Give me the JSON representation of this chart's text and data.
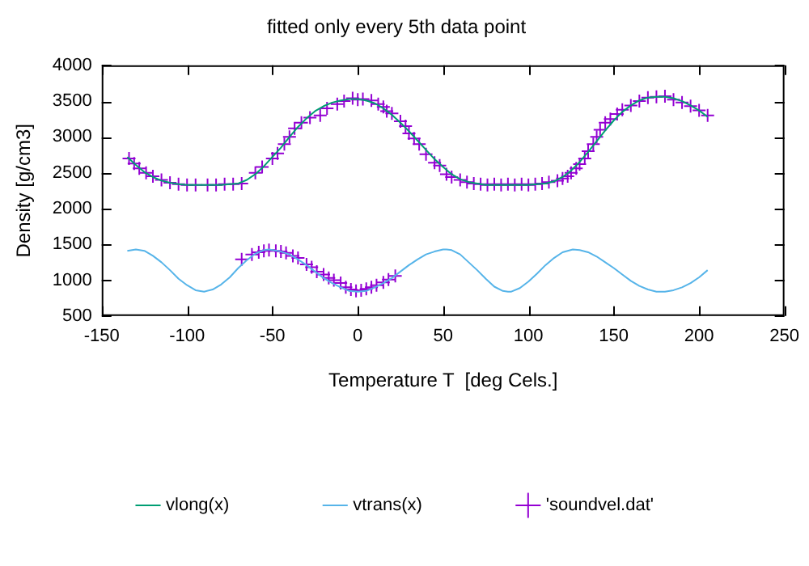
{
  "chart_data": {
    "type": "scatter",
    "title": "fitted only every 5th data point",
    "xlabel": "Temperature T  [deg Cels.]",
    "ylabel": "Density [g/cm3]",
    "xlim": [
      -150,
      250
    ],
    "xticks": [
      -150,
      -100,
      -50,
      0,
      50,
      100,
      150,
      200,
      250
    ],
    "ylim": [
      500,
      4000
    ],
    "yticks": [
      500,
      1000,
      1500,
      2000,
      2500,
      3000,
      3500,
      4000
    ],
    "grid": false,
    "legend": "bottom",
    "series": [
      {
        "name": "'soundvel.dat'",
        "marker": "cross",
        "color": "#9400d3",
        "x": [
          -134,
          -131,
          -128,
          -124,
          -120,
          -115,
          -110,
          -105,
          -100,
          -95,
          -88,
          -83,
          -78,
          -73,
          -68,
          -60,
          -56,
          -50,
          -47,
          -43,
          -40,
          -37,
          -33,
          -28,
          -22,
          -18,
          -12,
          -8,
          -3,
          0,
          3,
          8,
          12,
          15,
          17,
          20,
          25,
          28,
          30,
          33,
          36,
          40,
          45,
          48,
          52,
          55,
          60,
          64,
          68,
          72,
          76,
          80,
          84,
          88,
          92,
          96,
          100,
          104,
          108,
          112,
          117,
          120,
          123,
          125,
          128,
          130,
          133,
          135,
          138,
          140,
          142,
          145,
          148,
          152,
          155,
          160,
          165,
          170,
          175,
          180,
          185,
          190,
          195,
          200,
          205,
          -68,
          -62,
          -58,
          -55,
          -52,
          -48,
          -45,
          -42,
          -38,
          -35,
          -30,
          -27,
          -24,
          -20,
          -17,
          -14,
          -10,
          -7,
          -4,
          -1,
          2,
          5,
          8,
          11,
          15,
          18,
          22
        ],
        "values": [
          2700,
          2630,
          2560,
          2500,
          2450,
          2400,
          2360,
          2340,
          2330,
          2330,
          2330,
          2330,
          2340,
          2340,
          2350,
          2500,
          2580,
          2700,
          2770,
          2900,
          3000,
          3120,
          3200,
          3270,
          3300,
          3400,
          3460,
          3500,
          3540,
          3520,
          3530,
          3510,
          3460,
          3420,
          3360,
          3330,
          3220,
          3150,
          3050,
          2980,
          2900,
          2760,
          2640,
          2600,
          2480,
          2440,
          2400,
          2370,
          2350,
          2340,
          2330,
          2340,
          2330,
          2340,
          2330,
          2340,
          2330,
          2340,
          2350,
          2370,
          2390,
          2420,
          2450,
          2500,
          2560,
          2620,
          2700,
          2800,
          2900,
          3000,
          3100,
          3200,
          3250,
          3320,
          3380,
          3440,
          3500,
          3550,
          3560,
          3570,
          3520,
          3480,
          3430,
          3370,
          3300,
          1290,
          1360,
          1390,
          1410,
          1420,
          1410,
          1400,
          1380,
          1340,
          1310,
          1220,
          1180,
          1120,
          1080,
          1030,
          1000,
          960,
          900,
          870,
          850,
          860,
          880,
          900,
          930,
          970,
          1010,
          1060
        ]
      },
      {
        "name": "vlong(x)",
        "type": "line",
        "marker": "none",
        "line_style": "solid",
        "color": "#009e73",
        "x": [
          -135,
          -130,
          -125,
          -120,
          -115,
          -110,
          -105,
          -100,
          -95,
          -90,
          -85,
          -80,
          -75,
          -70,
          -65,
          -60,
          -55,
          -50,
          -45,
          -40,
          -35,
          -30,
          -25,
          -20,
          -15,
          -10,
          -5,
          0,
          5,
          10,
          15,
          20,
          25,
          30,
          35,
          40,
          45,
          50,
          55,
          60,
          65,
          70,
          75,
          80,
          85,
          90,
          95,
          100,
          105,
          110,
          115,
          120,
          125,
          130,
          135,
          140,
          145,
          150,
          155,
          160,
          165,
          170,
          175,
          180,
          185,
          190,
          195,
          200,
          205
        ],
        "values": [
          2720,
          2610,
          2510,
          2440,
          2390,
          2360,
          2340,
          2330,
          2330,
          2330,
          2330,
          2330,
          2340,
          2350,
          2400,
          2480,
          2590,
          2720,
          2850,
          3000,
          3140,
          3260,
          3360,
          3430,
          3480,
          3510,
          3530,
          3530,
          3510,
          3470,
          3400,
          3310,
          3200,
          3080,
          2950,
          2820,
          2690,
          2580,
          2480,
          2410,
          2370,
          2350,
          2330,
          2330,
          2330,
          2330,
          2330,
          2330,
          2340,
          2350,
          2380,
          2440,
          2530,
          2650,
          2790,
          2940,
          3090,
          3230,
          3350,
          3440,
          3510,
          3550,
          3560,
          3560,
          3540,
          3500,
          3440,
          3370,
          3280
        ]
      },
      {
        "name": "vtrans(x)",
        "type": "line",
        "marker": "none",
        "line_style": "solid",
        "color": "#56b4e9",
        "x": [
          -135,
          -130,
          -125,
          -120,
          -115,
          -110,
          -105,
          -100,
          -95,
          -90,
          -85,
          -80,
          -75,
          -70,
          -65,
          -60,
          -55,
          -52,
          -45,
          -40,
          -35,
          -30,
          -25,
          -20,
          -15,
          -10,
          -5,
          0,
          5,
          10,
          15,
          20,
          25,
          30,
          35,
          40,
          45,
          50,
          52,
          55,
          60,
          65,
          70,
          75,
          80,
          85,
          88,
          90,
          95,
          100,
          105,
          110,
          115,
          120,
          126,
          130,
          135,
          140,
          145,
          150,
          155,
          160,
          165,
          170,
          175,
          178,
          180,
          185,
          190,
          195,
          200,
          205
        ],
        "values": [
          1410,
          1430,
          1410,
          1340,
          1250,
          1140,
          1020,
          930,
          860,
          840,
          870,
          940,
          1040,
          1170,
          1280,
          1370,
          1420,
          1430,
          1400,
          1360,
          1290,
          1210,
          1120,
          1030,
          960,
          900,
          850,
          840,
          850,
          900,
          960,
          1030,
          1120,
          1210,
          1290,
          1360,
          1400,
          1430,
          1430,
          1420,
          1360,
          1250,
          1140,
          1020,
          910,
          850,
          840,
          840,
          890,
          980,
          1090,
          1210,
          1310,
          1390,
          1430,
          1420,
          1390,
          1330,
          1250,
          1170,
          1080,
          990,
          920,
          870,
          840,
          840,
          840,
          860,
          900,
          960,
          1040,
          1140
        ]
      }
    ]
  }
}
